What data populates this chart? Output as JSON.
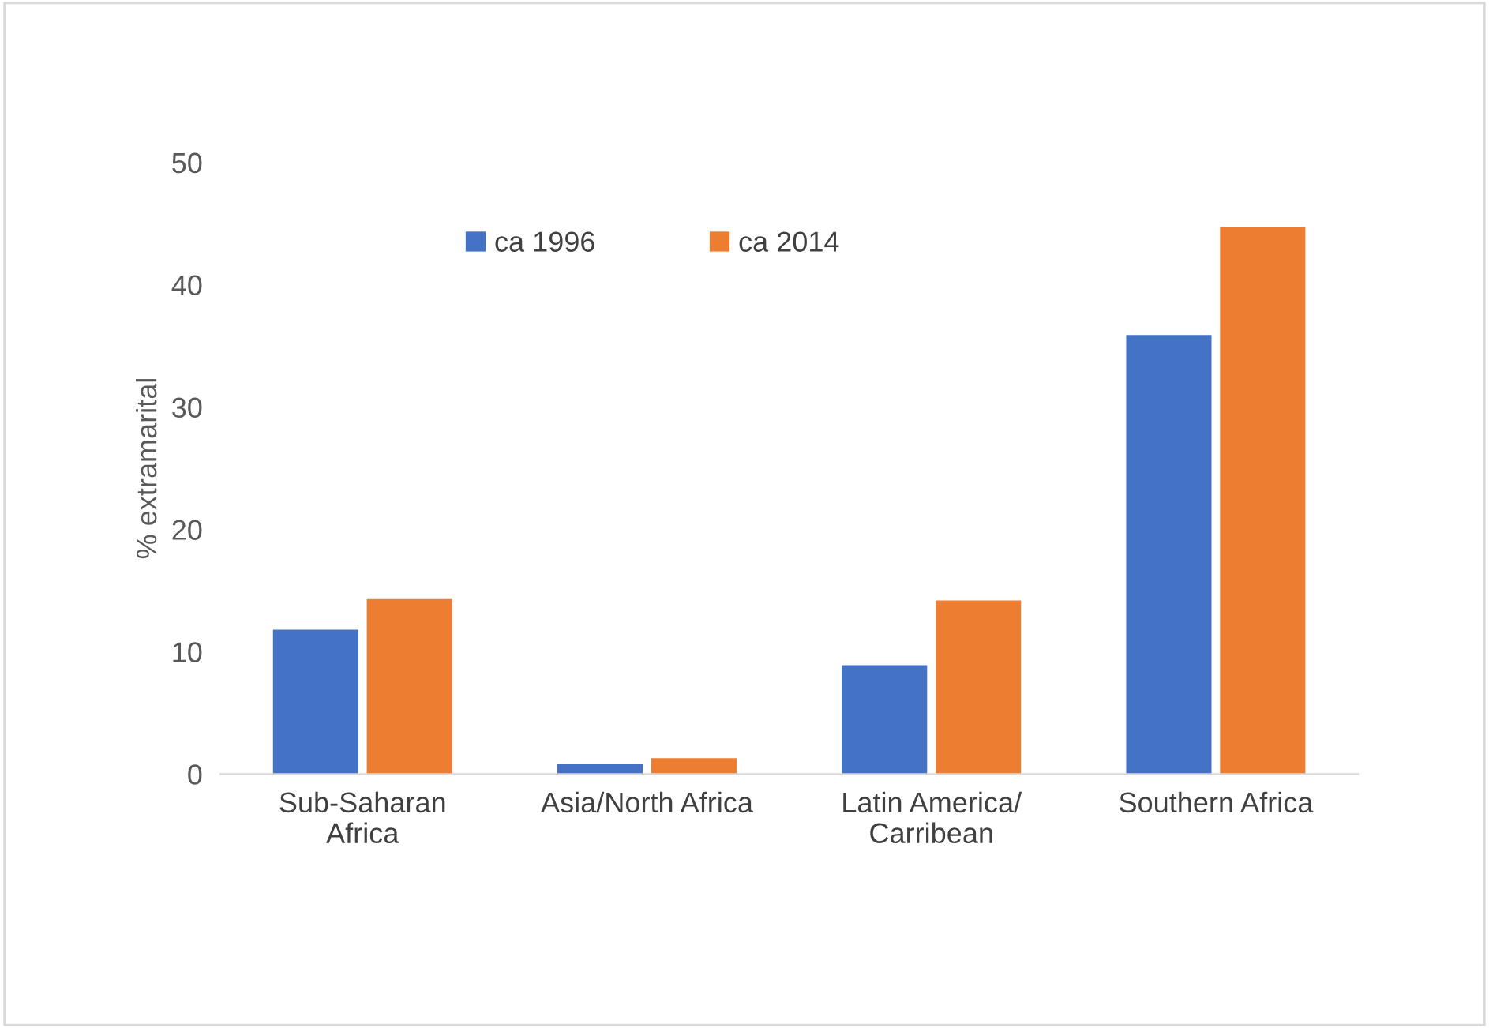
{
  "chart_data": {
    "type": "bar",
    "ylabel": "% extramarital",
    "categories": [
      "Sub-Saharan\nAfrica",
      "Asia/North Africa",
      "Latin America/\nCarribean",
      "Southern Africa"
    ],
    "series": [
      {
        "name": "ca 1996",
        "color": "#4472c4",
        "values": [
          11.8,
          0.8,
          8.9,
          35.9
        ]
      },
      {
        "name": "ca 2014",
        "color": "#ed7d31",
        "values": [
          14.3,
          1.3,
          14.2,
          44.7
        ]
      }
    ],
    "ylim": [
      0,
      50
    ],
    "yticks": [
      0,
      10,
      20,
      30,
      40,
      50
    ],
    "grid": false,
    "legend": "top"
  }
}
